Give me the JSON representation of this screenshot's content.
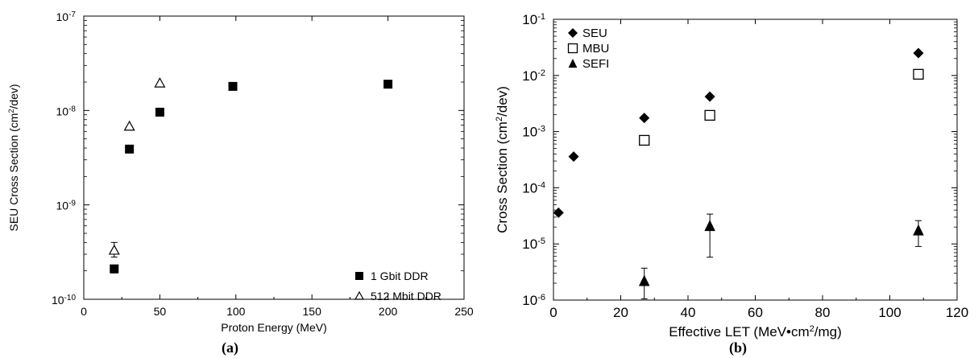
{
  "chart_data": [
    {
      "type": "scatter",
      "panel_label": "(a)",
      "xlabel": "Proton Energy (MeV)",
      "ylabel_parts": [
        "SEU Cross Section (cm",
        "2",
        "/dev)"
      ],
      "xlim": [
        0,
        250
      ],
      "ylim": [
        1e-10,
        1e-07
      ],
      "yscale": "log",
      "x_ticks": [
        "0",
        "50",
        "100",
        "150",
        "200",
        "250"
      ],
      "y_ticks": [
        {
          "base": "10",
          "exp": "-10",
          "value": 1e-10
        },
        {
          "base": "10",
          "exp": "-9",
          "value": 1e-09
        },
        {
          "base": "10",
          "exp": "-8",
          "value": 1e-08
        },
        {
          "base": "10",
          "exp": "-7",
          "value": 1e-07
        }
      ],
      "legend_position": "bottom-right",
      "series": [
        {
          "name": "1 Gbit DDR",
          "marker": "filled-square",
          "points": [
            {
              "x": 20,
              "y": 2.1e-10,
              "err_lo": 1.9e-10,
              "err_hi": 2.3e-10
            },
            {
              "x": 30,
              "y": 3.9e-09
            },
            {
              "x": 50,
              "y": 9.6e-09
            },
            {
              "x": 98,
              "y": 1.8e-08
            },
            {
              "x": 200,
              "y": 1.9e-08
            }
          ]
        },
        {
          "name": "512 Mbit DDR",
          "marker": "open-triangle",
          "points": [
            {
              "x": 20,
              "y": 3.3e-10,
              "err_lo": 2.8e-10,
              "err_hi": 4e-10
            },
            {
              "x": 30,
              "y": 6.8e-09
            },
            {
              "x": 50,
              "y": 1.95e-08
            }
          ]
        }
      ]
    },
    {
      "type": "scatter",
      "panel_label": "(b)",
      "xlabel_parts": [
        "Effective LET (MeV•cm",
        "2",
        "/mg)"
      ],
      "ylabel_parts": [
        "Cross Section (cm",
        "2",
        "/dev)"
      ],
      "xlim": [
        0,
        120
      ],
      "ylim": [
        1e-06,
        0.1
      ],
      "yscale": "log",
      "x_ticks": [
        "0",
        "20",
        "40",
        "60",
        "80",
        "100",
        "120"
      ],
      "y_ticks": [
        {
          "base": "10",
          "exp": "-6",
          "value": 1e-06
        },
        {
          "base": "10",
          "exp": "-5",
          "value": 1e-05
        },
        {
          "base": "10",
          "exp": "-4",
          "value": 0.0001
        },
        {
          "base": "10",
          "exp": "-3",
          "value": 0.001
        },
        {
          "base": "10",
          "exp": "-2",
          "value": 0.01
        },
        {
          "base": "10",
          "exp": "-1",
          "value": 0.1
        }
      ],
      "legend_position": "top-left",
      "series": [
        {
          "name": "SEU",
          "marker": "filled-diamond",
          "points": [
            {
              "x": 1.5,
              "y": 3.6e-05
            },
            {
              "x": 6,
              "y": 0.00036
            },
            {
              "x": 27,
              "y": 0.00175
            },
            {
              "x": 46.5,
              "y": 0.0042
            },
            {
              "x": 108.5,
              "y": 0.025
            }
          ]
        },
        {
          "name": "MBU",
          "marker": "open-square",
          "points": [
            {
              "x": 27,
              "y": 0.0007
            },
            {
              "x": 46.5,
              "y": 0.00195
            },
            {
              "x": 108.5,
              "y": 0.0105
            }
          ]
        },
        {
          "name": "SEFI",
          "marker": "filled-triangle",
          "points": [
            {
              "x": 27,
              "y": 2.2e-06,
              "err_lo": 1.05e-06,
              "err_hi": 3.7e-06
            },
            {
              "x": 46.5,
              "y": 2.1e-05,
              "err_lo": 5.8e-06,
              "err_hi": 3.4e-05
            },
            {
              "x": 108.5,
              "y": 1.75e-05,
              "err_lo": 9e-06,
              "err_hi": 2.6e-05
            }
          ]
        }
      ]
    }
  ]
}
